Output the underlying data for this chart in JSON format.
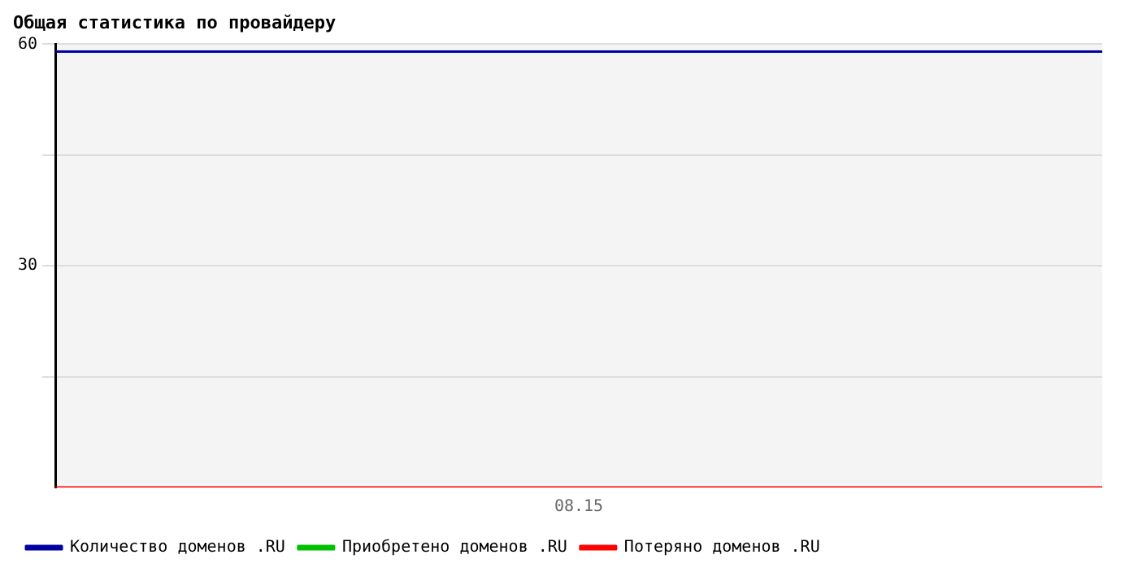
{
  "chart_data": {
    "type": "line",
    "title": "Общая статистика по провайдеру",
    "categories": [
      null,
      "08.15",
      null
    ],
    "series": [
      {
        "name": "Количество доменов .RU",
        "color": "#0000a0",
        "values": [
          59,
          59,
          59
        ]
      },
      {
        "name": "Приобретено доменов .RU",
        "color": "#00c000",
        "values": [
          null,
          null,
          null
        ]
      },
      {
        "name": "Потеряно доменов .RU",
        "color": "#ff0000",
        "values": [
          0,
          0,
          0
        ]
      }
    ],
    "ylim": [
      0,
      60
    ],
    "yticks": [
      {
        "value": 15,
        "label": null
      },
      30,
      {
        "value": 45,
        "label": null
      },
      60
    ],
    "grid": "y",
    "legend": "bottom",
    "marker": "none",
    "line_style": "solid"
  }
}
